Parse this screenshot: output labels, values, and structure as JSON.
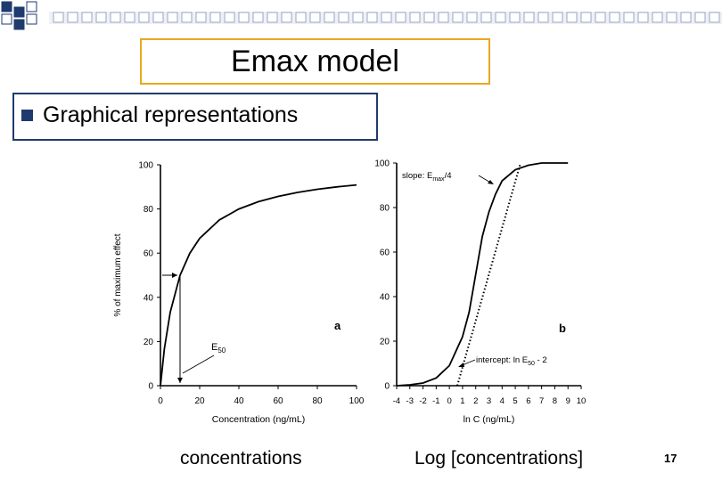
{
  "slide": {
    "title": "Emax model",
    "bullet": "Graphical representations",
    "caption_left": "concentrations",
    "caption_right": "Log [concentrations]",
    "page_number": "17",
    "colors": {
      "title_border": "#e8a81c",
      "bullet_border": "#1f3a6e",
      "squares": "#1f3a6e"
    }
  },
  "chart_data": [
    {
      "type": "line",
      "panel_label": "a",
      "xlabel": "Concentration (ng/mL)",
      "ylabel": "% of maximum effect",
      "xlim": [
        0,
        100
      ],
      "ylim": [
        0,
        100
      ],
      "xticks": [
        0,
        20,
        40,
        60,
        80,
        100
      ],
      "yticks": [
        0,
        20,
        40,
        60,
        80,
        100
      ],
      "series": [
        {
          "x": [
            0,
            2,
            5,
            10,
            15,
            20,
            30,
            40,
            50,
            60,
            70,
            80,
            90,
            100
          ],
          "y": [
            0,
            16.7,
            33.3,
            50,
            60,
            66.7,
            75,
            80,
            83.3,
            85.7,
            87.5,
            88.9,
            90,
            90.9
          ]
        }
      ],
      "annotations": {
        "ec50_label": "E",
        "ec50_sub": "50",
        "ec50_x": 10,
        "ec50_y": 50
      }
    },
    {
      "type": "line",
      "panel_label": "b",
      "xlabel": "ln C (ng/mL)",
      "xlim": [
        -4,
        10
      ],
      "ylim": [
        0,
        100
      ],
      "xticks": [
        -4,
        -3,
        -2,
        -1,
        0,
        1,
        2,
        3,
        4,
        5,
        6,
        7,
        8,
        9,
        10
      ],
      "yticks": [
        0,
        20,
        40,
        60,
        80,
        100
      ],
      "series": [
        {
          "x": [
            -4,
            -3,
            -2,
            -1,
            0,
            1,
            1.5,
            2,
            2.5,
            3,
            3.5,
            4,
            5,
            6,
            7,
            8,
            9
          ],
          "y": [
            0,
            0.4,
            1.2,
            3.5,
            9,
            22,
            33,
            50,
            67,
            78,
            86,
            92,
            97,
            99,
            100,
            100,
            100
          ]
        }
      ],
      "tangent": {
        "x": [
          0.6,
          5.4
        ],
        "y": [
          0,
          100
        ]
      },
      "annotations": {
        "slope_label": "slope: E",
        "slope_sub": "max",
        "slope_suffix": "/4",
        "intercept_label": "intercept: ln E",
        "intercept_sub": "50",
        "intercept_suffix": " - 2"
      }
    }
  ]
}
